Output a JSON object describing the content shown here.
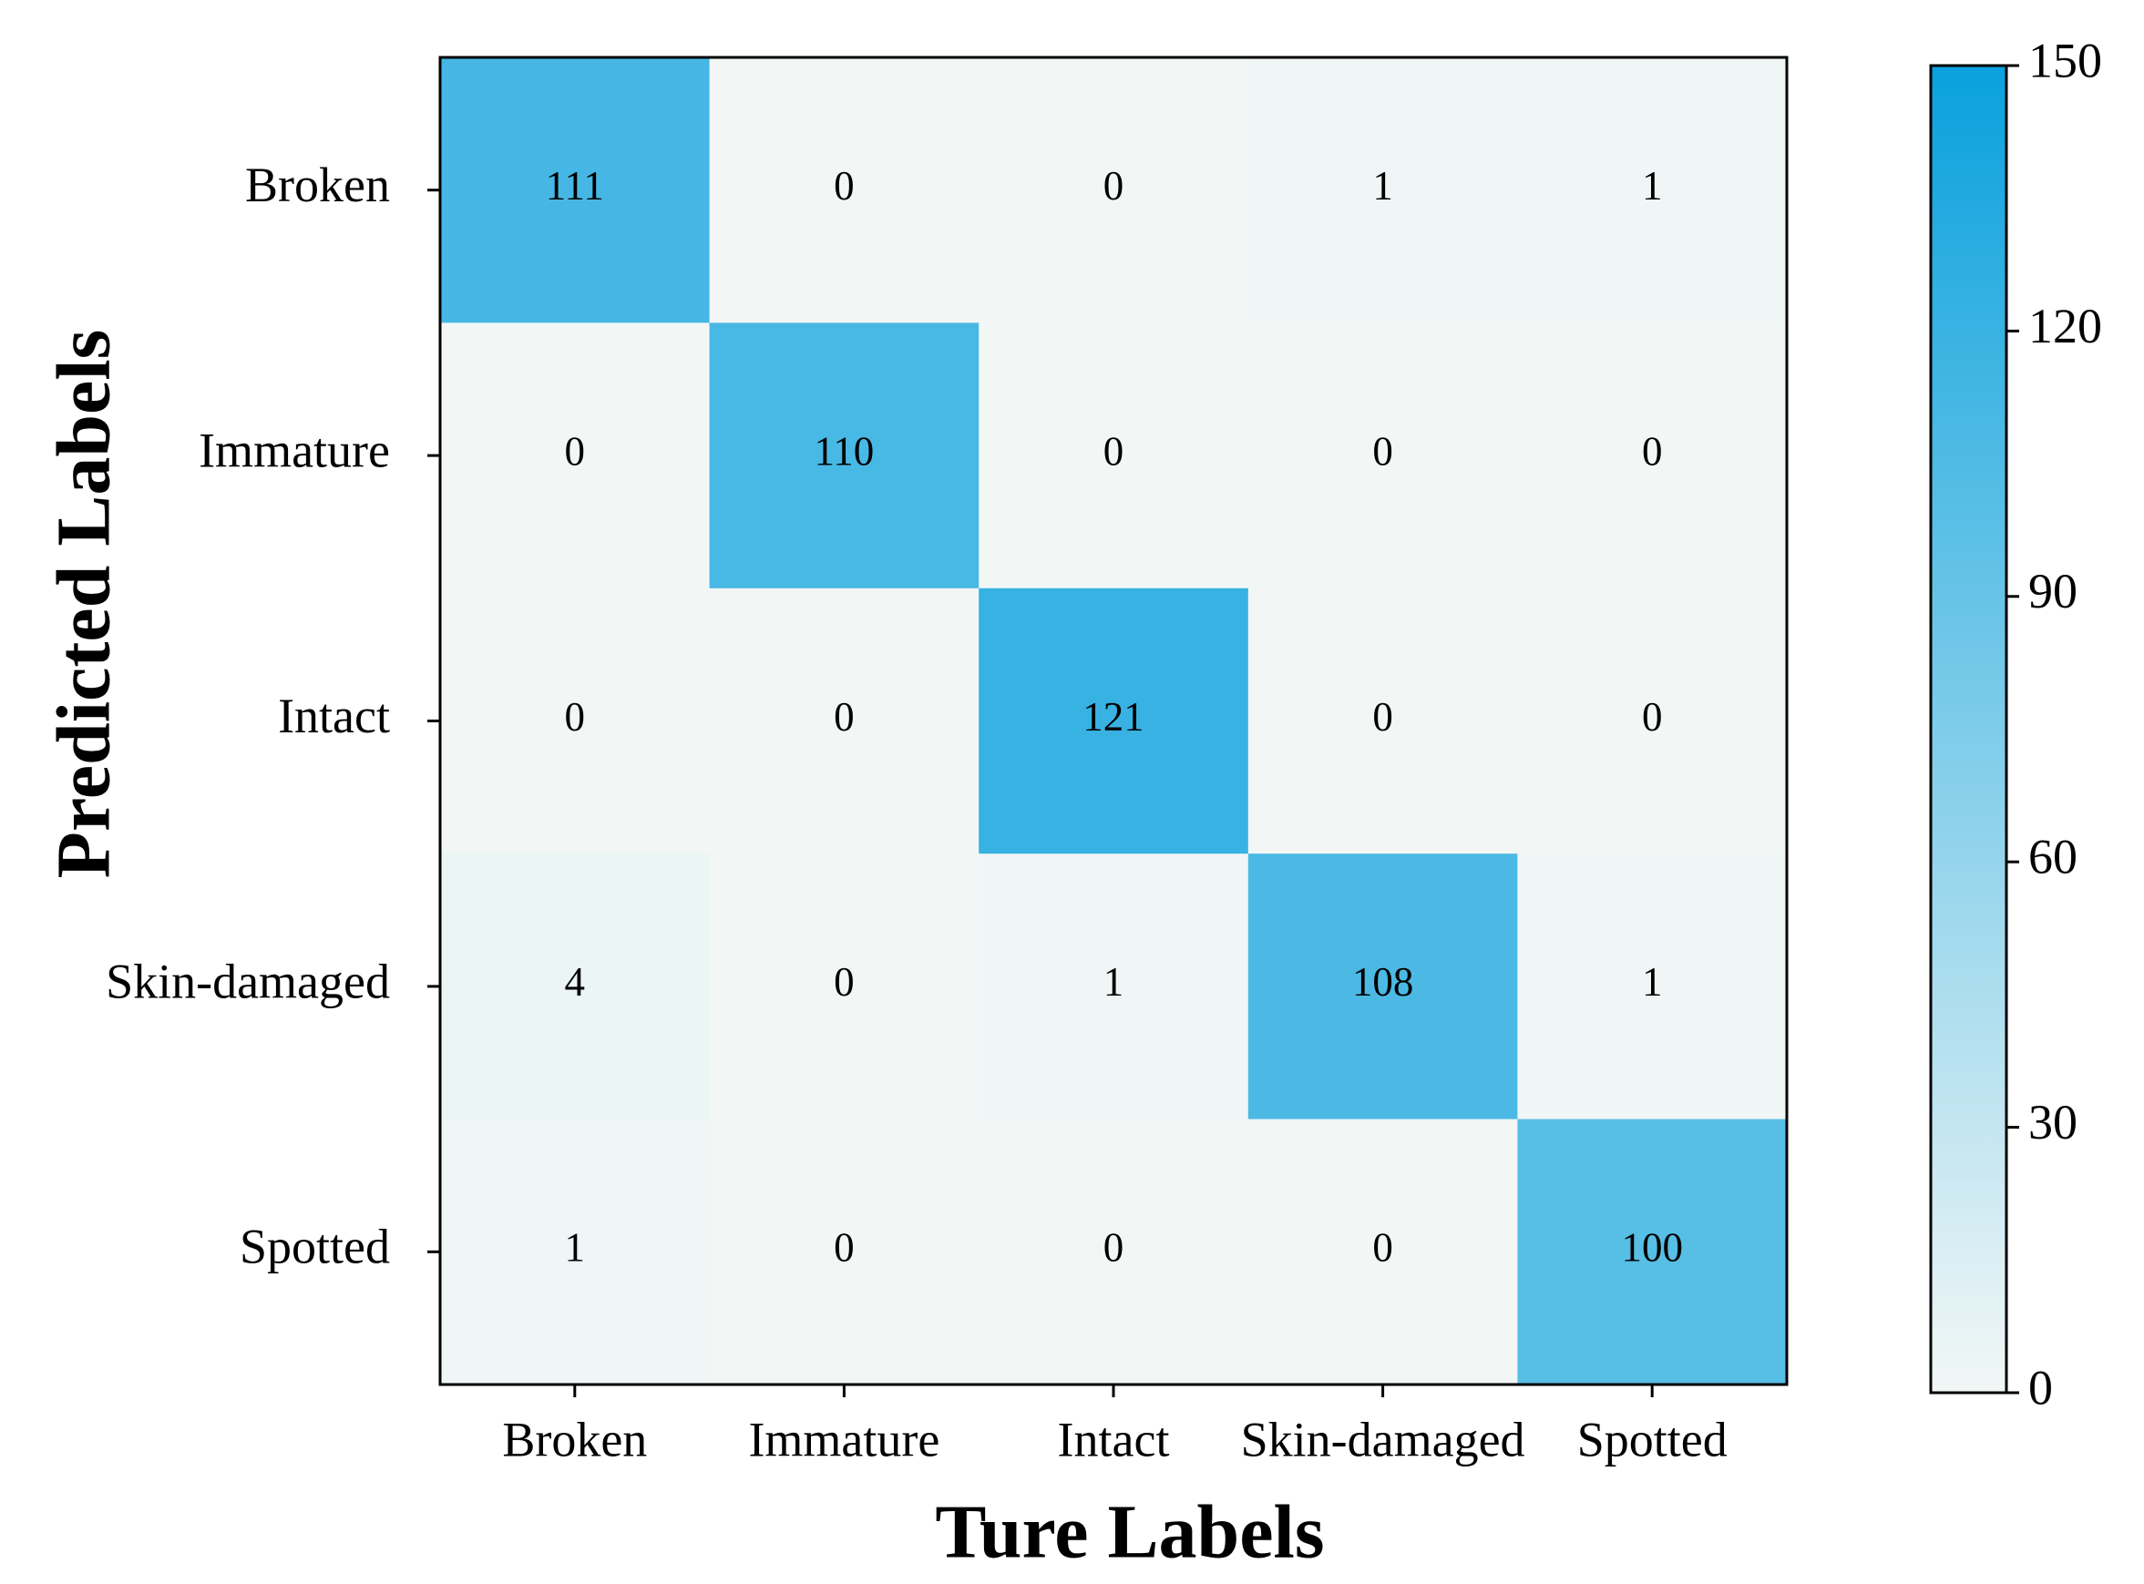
{
  "chart_data": {
    "type": "heatmap",
    "x_label": "Ture Labels",
    "y_label": "Predicted Labels",
    "x_categories": [
      "Broken",
      "Immature",
      "Intact",
      "Skin-damaged",
      "Spotted"
    ],
    "y_categories": [
      "Broken",
      "Immature",
      "Intact",
      "Skin-damaged",
      "Spotted"
    ],
    "values": [
      [
        111,
        0,
        0,
        1,
        1
      ],
      [
        0,
        110,
        0,
        0,
        0
      ],
      [
        0,
        0,
        121,
        0,
        0
      ],
      [
        4,
        0,
        1,
        108,
        1
      ],
      [
        1,
        0,
        0,
        0,
        100
      ]
    ],
    "colormap": [
      "#f2f7f6",
      "#0aa1dd"
    ],
    "clim": [
      0,
      150
    ],
    "cticks": [
      0,
      30,
      60,
      90,
      120,
      150
    ]
  }
}
